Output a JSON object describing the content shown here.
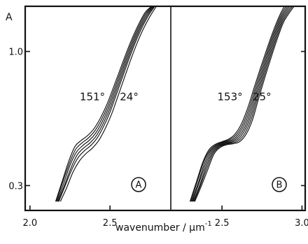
{
  "chart_data": {
    "type": "line",
    "title": "",
    "ylabel": "A",
    "xlabel": "wavenumber / µm",
    "xlabel_sup": "-1",
    "y_scale": "log",
    "y_ticks": [
      {
        "value": 1.0,
        "label": "1.0"
      },
      {
        "value": 0.3,
        "label": "0.3"
      }
    ],
    "ylim": [
      0.24,
      1.5
    ],
    "panels": [
      {
        "label": "A",
        "xlim": [
          1.97,
          2.88
        ],
        "x_ticks": [
          {
            "value": 2.0,
            "label": "2.0"
          },
          {
            "value": 2.5,
            "label": "2.5"
          }
        ],
        "annotations": [
          {
            "text": "151°",
            "x": 2.39,
            "y": 0.645
          },
          {
            "text": "24°",
            "x": 2.62,
            "y": 0.645
          }
        ],
        "series": [
          {
            "x": [
              2.16,
              2.2,
              2.24,
              2.28,
              2.32,
              2.36,
              2.4,
              2.44,
              2.48,
              2.52,
              2.56,
              2.6,
              2.64,
              2.68,
              2.72,
              2.76
            ],
            "y": [
              0.26,
              0.31,
              0.37,
              0.425,
              0.45,
              0.47,
              0.5,
              0.55,
              0.62,
              0.72,
              0.84,
              0.98,
              1.13,
              1.28,
              1.42,
              1.5
            ]
          },
          {
            "x": [
              2.165,
              2.205,
              2.245,
              2.285,
              2.325,
              2.365,
              2.405,
              2.445,
              2.485,
              2.525,
              2.565,
              2.605,
              2.645,
              2.685,
              2.725,
              2.765
            ],
            "y": [
              0.26,
              0.31,
              0.365,
              0.415,
              0.44,
              0.46,
              0.49,
              0.54,
              0.61,
              0.71,
              0.83,
              0.97,
              1.12,
              1.27,
              1.41,
              1.5
            ]
          },
          {
            "x": [
              2.17,
              2.21,
              2.25,
              2.29,
              2.33,
              2.37,
              2.41,
              2.45,
              2.49,
              2.53,
              2.57,
              2.61,
              2.65,
              2.69,
              2.73,
              2.77
            ],
            "y": [
              0.26,
              0.305,
              0.36,
              0.405,
              0.43,
              0.45,
              0.48,
              0.53,
              0.6,
              0.7,
              0.82,
              0.96,
              1.11,
              1.26,
              1.4,
              1.5
            ]
          },
          {
            "x": [
              2.175,
              2.215,
              2.255,
              2.295,
              2.335,
              2.375,
              2.415,
              2.455,
              2.495,
              2.535,
              2.575,
              2.615,
              2.655,
              2.695,
              2.735,
              2.775
            ],
            "y": [
              0.26,
              0.3,
              0.35,
              0.395,
              0.42,
              0.44,
              0.47,
              0.52,
              0.59,
              0.69,
              0.81,
              0.95,
              1.1,
              1.25,
              1.39,
              1.5
            ]
          },
          {
            "x": [
              2.18,
              2.22,
              2.26,
              2.3,
              2.34,
              2.38,
              2.42,
              2.46,
              2.5,
              2.54,
              2.58,
              2.62,
              2.66,
              2.7,
              2.74,
              2.78
            ],
            "y": [
              0.26,
              0.3,
              0.345,
              0.385,
              0.41,
              0.43,
              0.46,
              0.51,
              0.58,
              0.68,
              0.8,
              0.94,
              1.09,
              1.24,
              1.38,
              1.5
            ]
          },
          {
            "x": [
              2.19,
              2.23,
              2.27,
              2.31,
              2.35,
              2.39,
              2.43,
              2.47,
              2.51,
              2.55,
              2.59,
              2.63,
              2.67,
              2.71,
              2.75,
              2.79
            ],
            "y": [
              0.26,
              0.295,
              0.34,
              0.375,
              0.4,
              0.42,
              0.45,
              0.5,
              0.57,
              0.67,
              0.79,
              0.93,
              1.08,
              1.23,
              1.37,
              1.5
            ]
          }
        ]
      },
      {
        "label": "B",
        "xlim": [
          2.18,
          3.02
        ],
        "x_ticks": [
          {
            "value": 2.5,
            "label": "2.5"
          },
          {
            "value": 3.0,
            "label": "3.0"
          }
        ],
        "annotations": [
          {
            "text": "153°",
            "x": 2.55,
            "y": 0.645
          },
          {
            "text": "25°",
            "x": 2.75,
            "y": 0.645
          }
        ],
        "series": [
          {
            "x": [
              2.3,
              2.34,
              2.38,
              2.42,
              2.46,
              2.5,
              2.54,
              2.58,
              2.62,
              2.66,
              2.7,
              2.74,
              2.78,
              2.82,
              2.86,
              2.89
            ],
            "y": [
              0.26,
              0.31,
              0.37,
              0.415,
              0.435,
              0.445,
              0.455,
              0.475,
              0.52,
              0.6,
              0.72,
              0.86,
              1.02,
              1.2,
              1.38,
              1.5
            ]
          },
          {
            "x": [
              2.305,
              2.345,
              2.385,
              2.425,
              2.465,
              2.505,
              2.545,
              2.585,
              2.625,
              2.665,
              2.705,
              2.745,
              2.785,
              2.825,
              2.865,
              2.9
            ],
            "y": [
              0.26,
              0.31,
              0.37,
              0.412,
              0.433,
              0.443,
              0.452,
              0.47,
              0.512,
              0.59,
              0.71,
              0.85,
              1.01,
              1.19,
              1.37,
              1.5
            ]
          },
          {
            "x": [
              2.31,
              2.35,
              2.39,
              2.43,
              2.47,
              2.51,
              2.55,
              2.59,
              2.63,
              2.67,
              2.71,
              2.75,
              2.79,
              2.83,
              2.87,
              2.91
            ],
            "y": [
              0.26,
              0.305,
              0.365,
              0.41,
              0.431,
              0.441,
              0.449,
              0.465,
              0.505,
              0.58,
              0.7,
              0.84,
              1.0,
              1.18,
              1.36,
              1.5
            ]
          },
          {
            "x": [
              2.315,
              2.355,
              2.395,
              2.435,
              2.475,
              2.515,
              2.555,
              2.595,
              2.635,
              2.675,
              2.715,
              2.755,
              2.795,
              2.835,
              2.875,
              2.92
            ],
            "y": [
              0.26,
              0.305,
              0.36,
              0.407,
              0.429,
              0.439,
              0.446,
              0.46,
              0.497,
              0.57,
              0.69,
              0.83,
              0.99,
              1.17,
              1.35,
              1.5
            ]
          },
          {
            "x": [
              2.32,
              2.36,
              2.4,
              2.44,
              2.48,
              2.52,
              2.56,
              2.6,
              2.64,
              2.68,
              2.72,
              2.76,
              2.8,
              2.84,
              2.88,
              2.93
            ],
            "y": [
              0.26,
              0.3,
              0.355,
              0.404,
              0.427,
              0.437,
              0.443,
              0.455,
              0.49,
              0.56,
              0.68,
              0.82,
              0.98,
              1.16,
              1.34,
              1.5
            ]
          },
          {
            "x": [
              2.325,
              2.365,
              2.405,
              2.445,
              2.485,
              2.525,
              2.565,
              2.605,
              2.645,
              2.685,
              2.725,
              2.765,
              2.805,
              2.845,
              2.885,
              2.94
            ],
            "y": [
              0.26,
              0.3,
              0.35,
              0.401,
              0.425,
              0.435,
              0.44,
              0.45,
              0.482,
              0.55,
              0.67,
              0.81,
              0.97,
              1.15,
              1.33,
              1.5
            ]
          },
          {
            "x": [
              2.33,
              2.37,
              2.41,
              2.45,
              2.49,
              2.53,
              2.57,
              2.61,
              2.65,
              2.69,
              2.73,
              2.77,
              2.81,
              2.85,
              2.89,
              2.95
            ],
            "y": [
              0.26,
              0.298,
              0.345,
              0.398,
              0.423,
              0.433,
              0.437,
              0.445,
              0.475,
              0.54,
              0.66,
              0.8,
              0.96,
              1.14,
              1.32,
              1.5
            ]
          }
        ]
      }
    ]
  }
}
